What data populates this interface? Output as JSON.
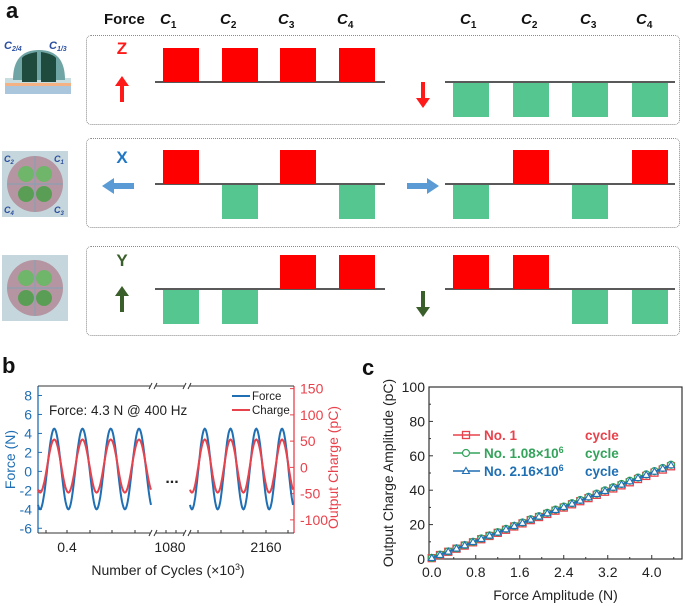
{
  "panel_a": {
    "letter": "a",
    "header": {
      "force": "Force",
      "channels": [
        {
          "base": "C",
          "sub": "1"
        },
        {
          "base": "C",
          "sub": "2"
        },
        {
          "base": "C",
          "sub": "3"
        },
        {
          "base": "C",
          "sub": "4"
        }
      ]
    },
    "colors": {
      "positive": "#ff0000",
      "negative": "#55c690",
      "z": "#ff1a1a",
      "x": "#1f77c6",
      "x_arrow": "#5b9bd5",
      "y": "#3b5f2a"
    },
    "device_labels": {
      "side": {
        "left": {
          "base": "C",
          "sub": "2/4"
        },
        "right": {
          "base": "C",
          "sub": "1/3"
        }
      },
      "top": {
        "tl": {
          "base": "C",
          "sub": "2"
        },
        "tr": {
          "base": "C",
          "sub": "1"
        },
        "bl": {
          "base": "C",
          "sub": "4"
        },
        "br": {
          "base": "C",
          "sub": "3"
        }
      }
    },
    "rows": [
      {
        "axis": "Z",
        "left_arrow": "up",
        "right_arrow": "down",
        "left_signs": [
          1,
          1,
          1,
          1
        ],
        "right_signs": [
          -1,
          -1,
          -1,
          -1
        ]
      },
      {
        "axis": "X",
        "left_arrow": "left",
        "right_arrow": "right",
        "left_signs": [
          1,
          -1,
          1,
          -1
        ],
        "right_signs": [
          -1,
          1,
          -1,
          1
        ]
      },
      {
        "axis": "Y",
        "left_arrow": "up",
        "right_arrow": "down",
        "left_signs": [
          -1,
          -1,
          1,
          1
        ],
        "right_signs": [
          1,
          1,
          -1,
          -1
        ]
      }
    ]
  },
  "chart_data": [
    {
      "panel": "b",
      "type": "line",
      "annotation": "Force: 4.3 N @ 400 Hz",
      "ellipsis": "...",
      "xlabel": "Number of Cycles (×10³)",
      "xlabel_parts": {
        "main": "Number of Cycles (×10",
        "sup": "3",
        "end": ")"
      },
      "x_tick_labels": [
        "0.4",
        "1080",
        "2160"
      ],
      "axis_break": true,
      "ylabel_left": "Force (N)",
      "ylabel_right": "Output Charge (pC)",
      "ylim_left": [
        -6.5,
        9
      ],
      "yticks_left": [
        8,
        6,
        4,
        2,
        0,
        -2,
        -4,
        -6
      ],
      "ylim_right": [
        -125,
        155
      ],
      "yticks_right": [
        150,
        100,
        50,
        0,
        -50,
        -100
      ],
      "series": [
        {
          "name": "Force",
          "color": "#1f6fb4",
          "axis": "left",
          "max": 4.5,
          "min": -4.0,
          "cycles_per_segment": 4
        },
        {
          "name": "Charge",
          "color": "#e8424c",
          "axis": "right",
          "max": 53,
          "min": -48,
          "cycles_per_segment": 4
        }
      ],
      "segments": [
        "start",
        "end"
      ],
      "legend": [
        "Force",
        "Charge"
      ],
      "legend_position": "top-right"
    },
    {
      "panel": "c",
      "type": "line",
      "xlabel": "Force Amplitude (N)",
      "ylabel": "Output Charge Amplitude (pC)",
      "xlim": [
        -0.05,
        4.55
      ],
      "ylim": [
        0,
        100
      ],
      "xticks": [
        "0.0",
        "0.8",
        "1.6",
        "2.4",
        "3.2",
        "4.0"
      ],
      "yticks": [
        "0",
        "20",
        "40",
        "60",
        "80",
        "100"
      ],
      "legend_position": "top-left",
      "series": [
        {
          "name": "No. 1 cycle",
          "label": "No. 1",
          "sup": "",
          "suffix": "cycle",
          "color": "#e8424c",
          "marker": "square",
          "x": [
            0.0,
            0.15,
            0.3,
            0.45,
            0.6,
            0.75,
            0.9,
            1.05,
            1.2,
            1.35,
            1.5,
            1.65,
            1.8,
            1.95,
            2.1,
            2.25,
            2.4,
            2.55,
            2.7,
            2.85,
            3.0,
            3.15,
            3.3,
            3.45,
            3.6,
            3.75,
            3.9,
            4.05,
            4.2,
            4.35
          ],
          "y": [
            0.5,
            2.3,
            4.2,
            6.0,
            7.8,
            9.7,
            11.5,
            13.4,
            15.2,
            17.0,
            18.9,
            20.7,
            22.6,
            24.4,
            26.2,
            28.1,
            29.9,
            31.8,
            33.6,
            35.4,
            37.3,
            39.1,
            41.0,
            42.8,
            44.6,
            46.5,
            48.3,
            50.2,
            52.0,
            53.9
          ]
        },
        {
          "name": "No. 1.08×10⁶ cycle",
          "label": "No. 1.08×10",
          "sup": "6",
          "suffix": "cycle",
          "color": "#34a35b",
          "marker": "circle",
          "x": [
            0.0,
            0.15,
            0.3,
            0.45,
            0.6,
            0.75,
            0.9,
            1.05,
            1.2,
            1.35,
            1.5,
            1.65,
            1.8,
            1.95,
            2.1,
            2.25,
            2.4,
            2.55,
            2.7,
            2.85,
            3.0,
            3.15,
            3.3,
            3.45,
            3.6,
            3.75,
            3.9,
            4.05,
            4.2,
            4.35
          ],
          "y": [
            0.6,
            2.5,
            4.4,
            6.2,
            8.1,
            10.0,
            11.9,
            13.7,
            15.6,
            17.5,
            19.3,
            21.2,
            23.1,
            24.9,
            26.8,
            28.7,
            30.5,
            32.4,
            34.3,
            36.1,
            38.0,
            39.9,
            41.7,
            43.6,
            45.5,
            47.3,
            49.2,
            51.1,
            52.9,
            54.8
          ]
        },
        {
          "name": "No. 2.16×10⁶ cycle",
          "label": "No. 2.16×10",
          "sup": "6",
          "suffix": "cycle",
          "color": "#1f6fb4",
          "marker": "triangle",
          "x": [
            0.0,
            0.15,
            0.3,
            0.45,
            0.6,
            0.75,
            0.9,
            1.05,
            1.2,
            1.35,
            1.5,
            1.65,
            1.8,
            1.95,
            2.1,
            2.25,
            2.4,
            2.55,
            2.7,
            2.85,
            3.0,
            3.15,
            3.3,
            3.45,
            3.6,
            3.75,
            3.9,
            4.05,
            4.2,
            4.35
          ],
          "y": [
            0.6,
            2.4,
            4.3,
            6.1,
            8.0,
            9.9,
            11.7,
            13.6,
            15.4,
            17.3,
            19.2,
            21.0,
            22.9,
            24.7,
            26.6,
            28.5,
            30.3,
            32.2,
            34.0,
            35.9,
            37.8,
            39.6,
            41.5,
            43.3,
            45.2,
            47.1,
            48.9,
            50.8,
            52.6,
            54.5
          ]
        }
      ]
    }
  ]
}
